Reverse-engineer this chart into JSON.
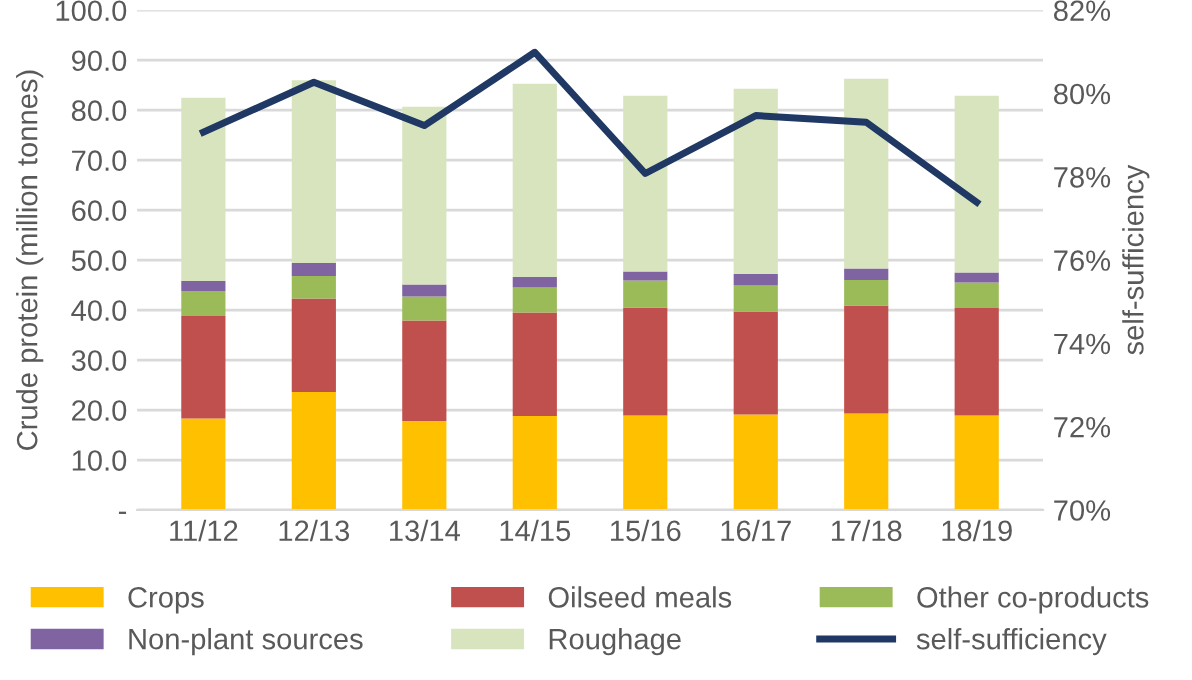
{
  "chart_data": {
    "type": "bar",
    "stacked": true,
    "categories": [
      "11/12",
      "12/13",
      "13/14",
      "14/15",
      "15/16",
      "16/17",
      "17/18",
      "18/19"
    ],
    "series": [
      {
        "name": "Crops",
        "color": "#ffc000",
        "values": [
          18.3,
          23.6,
          17.8,
          18.8,
          18.9,
          19.1,
          19.3,
          18.9
        ]
      },
      {
        "name": "Oilseed meals",
        "color": "#c0504d",
        "values": [
          20.5,
          18.7,
          20.1,
          20.7,
          21.6,
          20.6,
          21.6,
          21.5
        ]
      },
      {
        "name": "Other co-products",
        "color": "#9bbb59",
        "values": [
          5.0,
          4.5,
          4.8,
          5.0,
          5.4,
          5.2,
          5.1,
          5.1
        ]
      },
      {
        "name": "Non-plant sources",
        "color": "#8064a2",
        "values": [
          2.0,
          2.6,
          2.4,
          2.1,
          1.8,
          2.3,
          2.3,
          2.0
        ]
      },
      {
        "name": "Roughage",
        "color": "#d7e4bd",
        "values": [
          36.7,
          36.6,
          35.6,
          38.7,
          35.2,
          37.1,
          38.0,
          35.4
        ]
      },
      {
        "name": "self-sufficiency",
        "type": "line",
        "axis": "y2",
        "color": "#1f3864",
        "values": [
          79.07,
          80.27,
          79.23,
          80.99,
          78.08,
          79.47,
          79.31,
          77.39
        ]
      }
    ],
    "ylabel": "Crude protein (million tonnes)",
    "y2label": "self-sufficiency",
    "ylim": [
      0,
      100
    ],
    "yticks": [
      {
        "value": 0,
        "label": "-"
      },
      {
        "value": 10,
        "label": "10.0"
      },
      {
        "value": 20,
        "label": "20.0"
      },
      {
        "value": 30,
        "label": "30.0"
      },
      {
        "value": 40,
        "label": "40.0"
      },
      {
        "value": 50,
        "label": "50.0"
      },
      {
        "value": 60,
        "label": "60.0"
      },
      {
        "value": 70,
        "label": "70.0"
      },
      {
        "value": 80,
        "label": "80.0"
      },
      {
        "value": 90,
        "label": "90.0"
      },
      {
        "value": 100,
        "label": "100.0"
      }
    ],
    "y2lim": [
      70,
      82
    ],
    "y2ticks": [
      {
        "value": 70,
        "label": "70%"
      },
      {
        "value": 72,
        "label": "72%"
      },
      {
        "value": 74,
        "label": "74%"
      },
      {
        "value": 76,
        "label": "76%"
      },
      {
        "value": 78,
        "label": "78%"
      },
      {
        "value": 80,
        "label": "80%"
      },
      {
        "value": 82,
        "label": "82%"
      }
    ],
    "grid": "y",
    "legend": "bottom",
    "marker": "none"
  }
}
